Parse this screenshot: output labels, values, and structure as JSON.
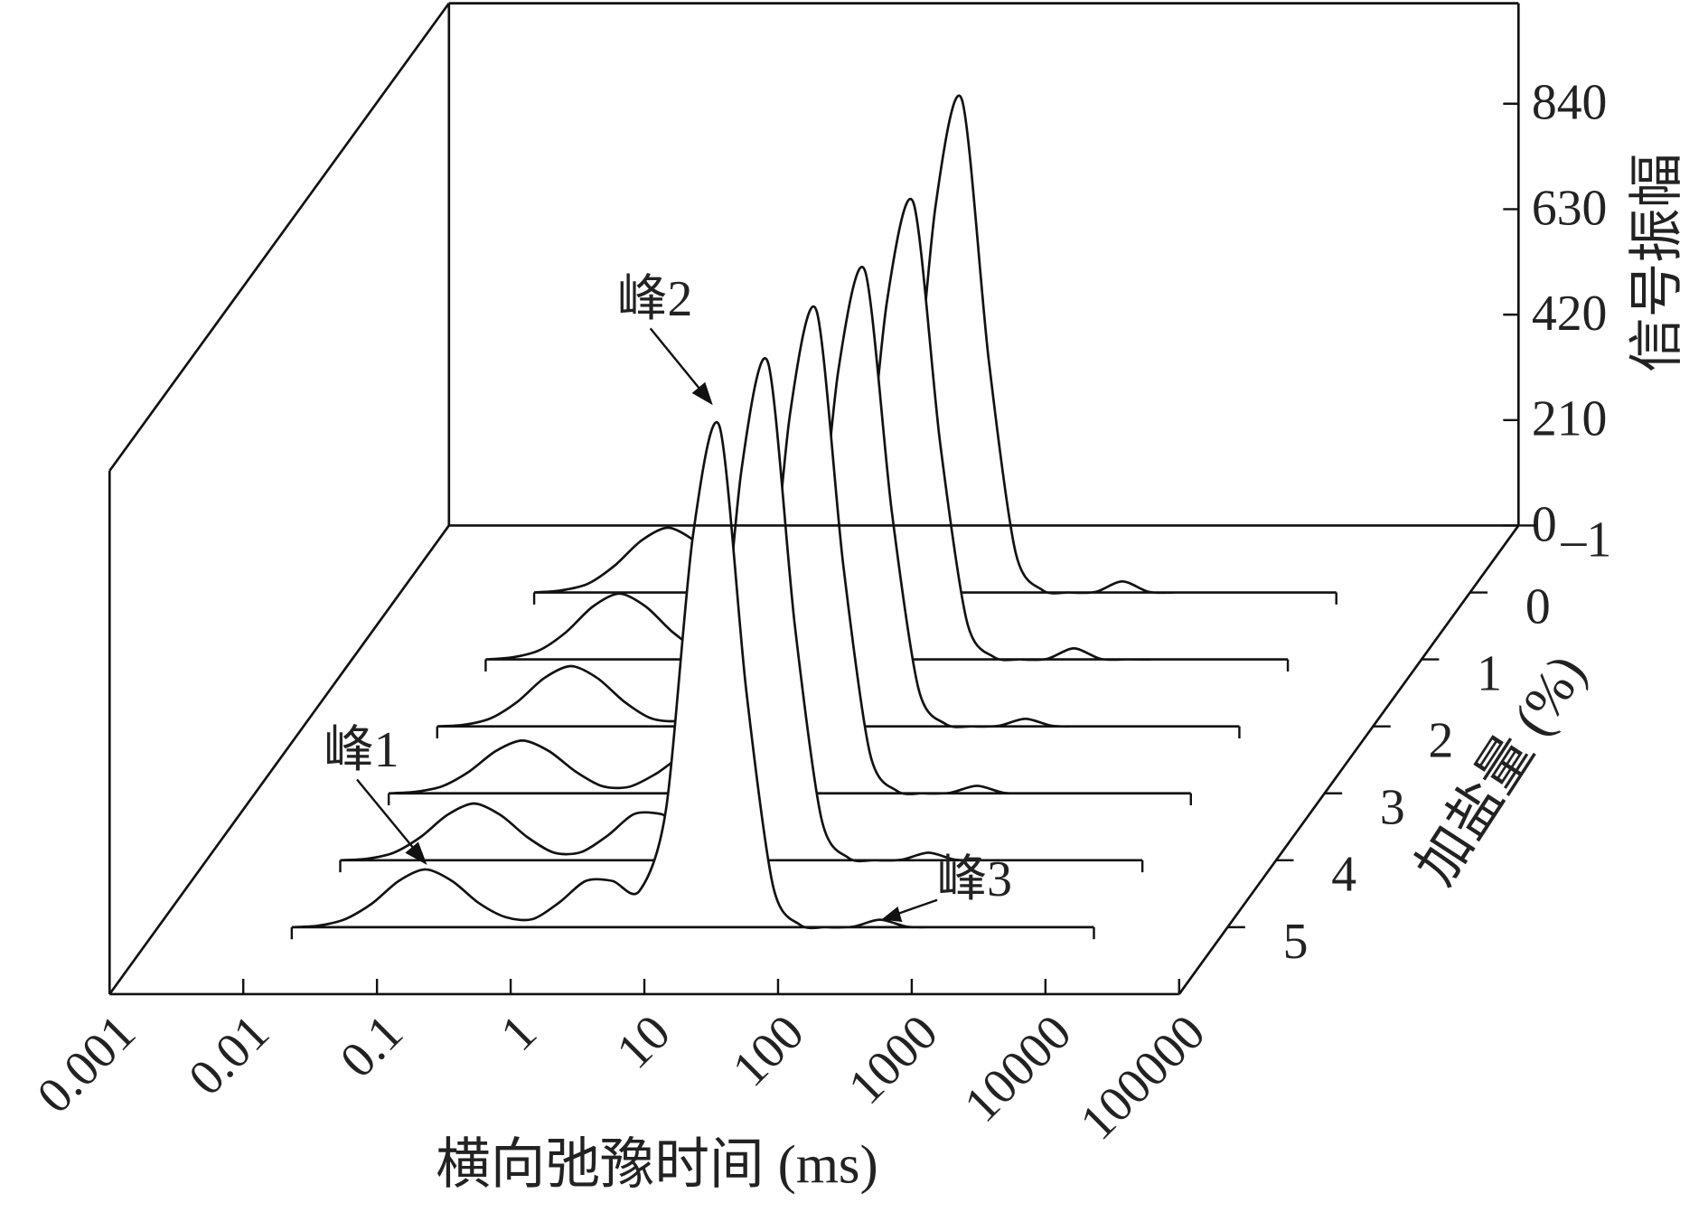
{
  "chart_data": {
    "type": "waterfall3d",
    "x_title": "横向弛豫时间 (ms)",
    "y_title": "信号振幅",
    "z_title": "加盐量 (%)",
    "annotations": [
      "峰1",
      "峰2",
      "峰3"
    ],
    "x_log": true,
    "xlim": [
      0.001,
      100000
    ],
    "xticks": [
      0.001,
      0.01,
      0.1,
      1,
      10,
      100,
      1000,
      10000,
      100000
    ],
    "ylim": [
      0,
      1040
    ],
    "yticks": [
      0,
      210,
      420,
      630,
      840
    ],
    "zlim": [
      6,
      -1
    ],
    "zticks": [
      {
        "value": -1,
        "label": "–1"
      },
      0,
      1,
      2,
      3,
      4,
      5
    ],
    "color": "#111111",
    "x": [
      0.01,
      0.0158,
      0.0251,
      0.0398,
      0.0631,
      0.1,
      0.158,
      0.251,
      0.398,
      0.631,
      1,
      1.58,
      2.51,
      3.98,
      6.31,
      10,
      15.8,
      25.1,
      39.8,
      63.1,
      100,
      158,
      251,
      398,
      631,
      1000,
      1580,
      2510,
      3980,
      6310,
      10000
    ],
    "series": [
      {
        "z": 0,
        "values": [
          0,
          4,
          17,
          53,
          103,
          129,
          103,
          53,
          17,
          7,
          10,
          18,
          18,
          33,
          222,
          765,
          982,
          464,
          81,
          5,
          0,
          1,
          22,
          1,
          0,
          0,
          0,
          0,
          0,
          0,
          0
        ]
      },
      {
        "z": 1,
        "values": [
          0,
          4,
          18,
          54,
          105,
          131,
          105,
          54,
          18,
          9,
          20,
          37,
          37,
          42,
          208,
          710,
          910,
          430,
          75,
          5,
          0,
          1,
          22,
          1,
          0,
          0,
          0,
          0,
          0,
          0,
          0
        ]
      },
      {
        "z": 2,
        "values": [
          0,
          3,
          16,
          49,
          96,
          120,
          96,
          49,
          16,
          11,
          29,
          55,
          55,
          51,
          210,
          708,
          908,
          429,
          75,
          5,
          0,
          1,
          15,
          1,
          0,
          0,
          0,
          0,
          0,
          0,
          0
        ]
      },
      {
        "z": 3,
        "values": [
          0,
          3,
          14,
          43,
          84,
          105,
          84,
          43,
          14,
          13,
          39,
          74,
          74,
          62,
          224,
          752,
          962,
          455,
          79,
          5,
          0,
          1,
          15,
          1,
          0,
          0,
          0,
          0,
          0,
          0,
          0
        ]
      },
      {
        "z": 4,
        "values": [
          0,
          3,
          15,
          46,
          90,
          113,
          90,
          46,
          15,
          16,
          49,
          92,
          92,
          73,
          234,
          775,
          992,
          469,
          82,
          5,
          0,
          1,
          15,
          1,
          0,
          0,
          0,
          0,
          0,
          0,
          0
        ]
      },
      {
        "z": 5,
        "values": [
          0,
          3,
          16,
          47,
          92,
          115,
          92,
          48,
          20,
          16,
          49,
          92,
          92,
          72,
          236,
          778,
          998,
          471,
          82,
          5,
          0,
          1,
          15,
          1,
          0,
          0,
          0,
          0,
          0,
          0,
          0
        ]
      }
    ]
  }
}
